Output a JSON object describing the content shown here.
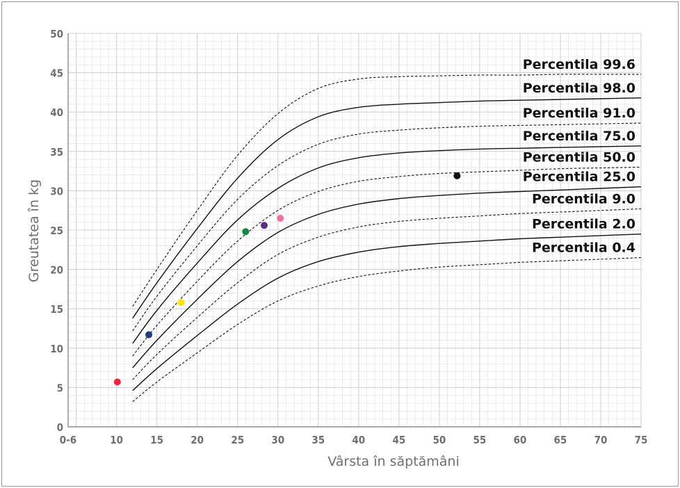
{
  "chart_data": {
    "type": "line",
    "xlabel": "Vârsta în săptămâni",
    "ylabel": "Greutatea în kg",
    "x_ticks": [
      "0-6",
      "10",
      "15",
      "20",
      "25",
      "30",
      "35",
      "40",
      "45",
      "50",
      "55",
      "60",
      "65",
      "70",
      "75"
    ],
    "y_ticks": [
      "0",
      "5",
      "10",
      "15",
      "20",
      "25",
      "30",
      "35",
      "40",
      "45",
      "50"
    ],
    "xlim": [
      4,
      75
    ],
    "ylim": [
      0,
      50
    ],
    "grid": true,
    "x": [
      12,
      15,
      20,
      25,
      30,
      35,
      40,
      45,
      50,
      55,
      60,
      65,
      70,
      75
    ],
    "series": [
      {
        "name": "Percentila 99.6",
        "label": "Percentila 99.6",
        "style": "dashed",
        "values": [
          15.3,
          20.0,
          27.5,
          34.5,
          39.8,
          43.0,
          44.2,
          44.5,
          44.6,
          44.7,
          44.7,
          44.8,
          44.8,
          44.8
        ]
      },
      {
        "name": "Percentila 98.0",
        "label": "Percentila 98.0",
        "style": "solid",
        "values": [
          13.8,
          18.3,
          25.2,
          31.6,
          36.5,
          39.4,
          40.6,
          41.0,
          41.2,
          41.4,
          41.5,
          41.6,
          41.7,
          41.8
        ]
      },
      {
        "name": "Percentila 91.0",
        "label": "Percentila 91.0",
        "style": "dashed",
        "values": [
          12.2,
          16.6,
          23.0,
          28.9,
          33.2,
          35.9,
          37.2,
          37.7,
          38.0,
          38.2,
          38.3,
          38.4,
          38.5,
          38.6
        ]
      },
      {
        "name": "Percentila 75.0",
        "label": "Percentila 75.0",
        "style": "solid",
        "values": [
          10.6,
          14.8,
          20.8,
          26.3,
          30.3,
          32.9,
          34.2,
          34.8,
          35.1,
          35.3,
          35.4,
          35.5,
          35.6,
          35.7
        ]
      },
      {
        "name": "Percentila 50.0",
        "label": "Percentila 50.0",
        "style": "dashed",
        "values": [
          9.0,
          12.9,
          18.5,
          23.6,
          27.5,
          29.9,
          31.2,
          31.8,
          32.2,
          32.4,
          32.6,
          32.8,
          32.9,
          33.0
        ]
      },
      {
        "name": "Percentila 25.0",
        "label": "Percentila 25.0",
        "style": "solid",
        "values": [
          7.5,
          11.0,
          16.2,
          21.0,
          24.7,
          27.0,
          28.3,
          29.0,
          29.4,
          29.7,
          29.9,
          30.1,
          30.3,
          30.5
        ]
      },
      {
        "name": "Percentila 9.0",
        "label": "Percentila 9.0",
        "style": "dashed",
        "values": [
          6.0,
          9.2,
          13.9,
          18.3,
          21.9,
          24.1,
          25.4,
          26.1,
          26.5,
          26.8,
          27.1,
          27.3,
          27.5,
          27.7
        ]
      },
      {
        "name": "Percentila 2.0",
        "label": "Percentila 2.0",
        "style": "solid",
        "values": [
          4.6,
          7.4,
          11.6,
          15.6,
          18.9,
          21.0,
          22.2,
          22.9,
          23.3,
          23.6,
          23.9,
          24.1,
          24.3,
          24.5
        ]
      },
      {
        "name": "Percentila 0.4",
        "label": "Percentila 0.4",
        "style": "dashed",
        "values": [
          3.2,
          5.7,
          9.4,
          13.0,
          16.0,
          17.9,
          19.1,
          19.8,
          20.3,
          20.6,
          20.9,
          21.1,
          21.3,
          21.5
        ]
      }
    ],
    "points": [
      {
        "name": "red-point",
        "x": 10.1,
        "y": 5.7,
        "color": "#ee2436"
      },
      {
        "name": "navy-point",
        "x": 14.0,
        "y": 11.7,
        "color": "#1f3d7a"
      },
      {
        "name": "yellow-point",
        "x": 18.0,
        "y": 15.8,
        "color": "#ffe000"
      },
      {
        "name": "green-point",
        "x": 26.0,
        "y": 24.8,
        "color": "#12883f"
      },
      {
        "name": "purple-point",
        "x": 28.3,
        "y": 25.6,
        "color": "#5b2c83"
      },
      {
        "name": "pink-point",
        "x": 30.3,
        "y": 26.5,
        "color": "#ef6fa2"
      },
      {
        "name": "black-point",
        "x": 52.2,
        "y": 31.9,
        "color": "#111111"
      }
    ]
  }
}
